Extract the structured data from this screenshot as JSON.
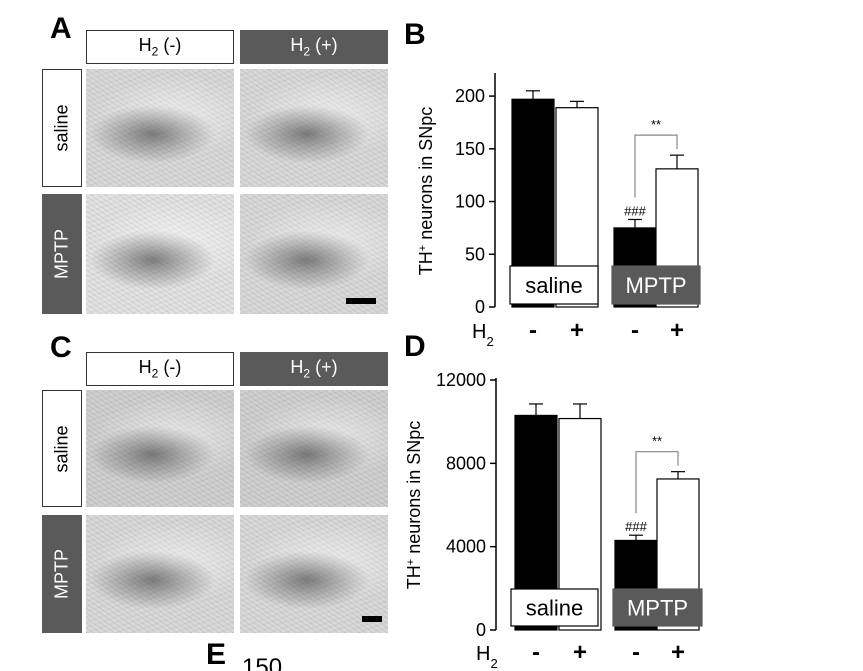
{
  "panels": {
    "A": {
      "letter": "A",
      "columns": [
        {
          "main": "H",
          "sub": "2",
          "tail": " (-)"
        },
        {
          "main": "H",
          "sub": "2",
          "tail": " (+)"
        }
      ],
      "rows": [
        "saline",
        "MPTP"
      ]
    },
    "C": {
      "letter": "C",
      "columns": [
        {
          "main": "H",
          "sub": "2",
          "tail": " (-)"
        },
        {
          "main": "H",
          "sub": "2",
          "tail": " (+)"
        }
      ],
      "rows": [
        "saline",
        "MPTP"
      ]
    },
    "E": {
      "letter": "E",
      "partial_tick": "150"
    }
  },
  "chart_data": [
    {
      "panel": "B",
      "type": "bar",
      "letter": "B",
      "ylabel_main": "TH",
      "ylabel_sup": "+",
      "ylabel_tail": " neurons in SNpc",
      "ylim": [
        0,
        220
      ],
      "yticks": [
        0,
        50,
        100,
        150,
        200
      ],
      "groups": [
        "saline",
        "MPTP"
      ],
      "h2_label_main": "H",
      "h2_label_sub": "2",
      "h2_markers": [
        "-",
        "+",
        "-",
        "+"
      ],
      "bars": [
        {
          "group": "saline",
          "h2": "-",
          "value": 197,
          "error": 8,
          "fill": "#000000"
        },
        {
          "group": "saline",
          "h2": "+",
          "value": 189,
          "error": 6,
          "fill": "#ffffff"
        },
        {
          "group": "MPTP",
          "h2": "-",
          "value": 75,
          "error": 8,
          "fill": "#000000",
          "annotation": "###"
        },
        {
          "group": "MPTP",
          "h2": "+",
          "value": 131,
          "error": 13,
          "fill": "#ffffff"
        }
      ],
      "significance": {
        "from_bar": 2,
        "to_bar": 3,
        "label": "**"
      }
    },
    {
      "panel": "D",
      "type": "bar",
      "letter": "D",
      "ylabel_main": "TH",
      "ylabel_sup": "+",
      "ylabel_tail": " neurons in SNpc",
      "ylim": [
        0,
        12000
      ],
      "yticks": [
        0,
        4000,
        8000,
        12000
      ],
      "groups": [
        "saline",
        "MPTP"
      ],
      "h2_label_main": "H",
      "h2_label_sub": "2",
      "h2_markers": [
        "-",
        "+",
        "-",
        "+"
      ],
      "bars": [
        {
          "group": "saline",
          "h2": "-",
          "value": 10300,
          "error": 550,
          "fill": "#000000"
        },
        {
          "group": "saline",
          "h2": "+",
          "value": 10150,
          "error": 700,
          "fill": "#ffffff"
        },
        {
          "group": "MPTP",
          "h2": "-",
          "value": 4300,
          "error": 250,
          "fill": "#000000",
          "annotation": "###"
        },
        {
          "group": "MPTP",
          "h2": "+",
          "value": 7250,
          "error": 350,
          "fill": "#ffffff"
        }
      ],
      "significance": {
        "from_bar": 2,
        "to_bar": 3,
        "label": "**"
      }
    }
  ],
  "colors": {
    "dark_box": "#5a5a5a",
    "bar_dark": "#000000",
    "bar_light": "#ffffff"
  }
}
